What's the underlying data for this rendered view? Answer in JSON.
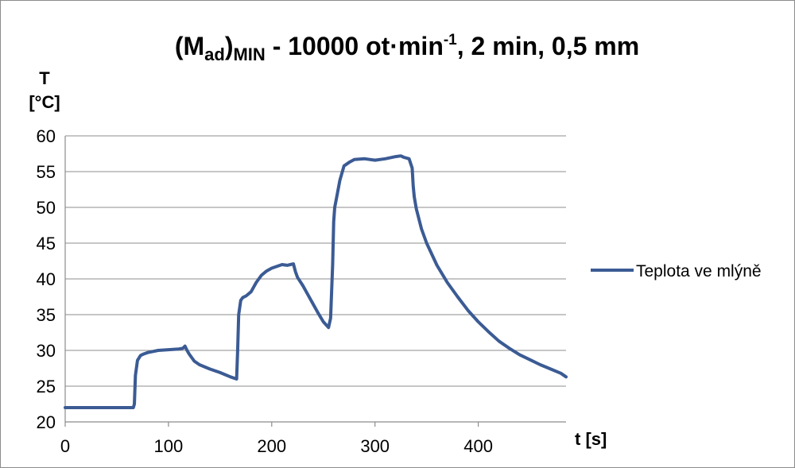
{
  "chart_data": {
    "type": "line",
    "title": {
      "prefix": "(M",
      "sub1": "ad",
      "close": ")",
      "sub2": "MIN",
      "middle": " - 10000 ot·min",
      "sup": "-1",
      "suffix": ", 2 min, 0,5 mm"
    },
    "ylabel": {
      "line1": "T",
      "line2": "[°C]"
    },
    "xlabel": "t [s]",
    "xlim": [
      0,
      485
    ],
    "ylim": [
      20,
      60
    ],
    "x_ticks": [
      "0",
      "100",
      "200",
      "300",
      "400"
    ],
    "y_ticks": [
      "20",
      "25",
      "30",
      "35",
      "40",
      "45",
      "50",
      "55",
      "60"
    ],
    "grid": "horizontal",
    "legend_position": "right",
    "series": [
      {
        "name": "Teplota ve mlýně",
        "color": "#3b5b94",
        "x": [
          0,
          20,
          40,
          60,
          66,
          67,
          68,
          70,
          73,
          76,
          80,
          90,
          100,
          110,
          114,
          116,
          118,
          120,
          125,
          130,
          140,
          150,
          160,
          166,
          167,
          168,
          170,
          172,
          175,
          180,
          185,
          190,
          195,
          200,
          210,
          215,
          218,
          221,
          223,
          225,
          230,
          235,
          240,
          245,
          250,
          255,
          257,
          259,
          260,
          261,
          263,
          266,
          270,
          275,
          280,
          290,
          300,
          310,
          320,
          325,
          328,
          333,
          336,
          337,
          338,
          340,
          345,
          350,
          360,
          370,
          380,
          390,
          400,
          410,
          420,
          430,
          440,
          450,
          460,
          470,
          480,
          485
        ],
        "y": [
          22.0,
          22.0,
          22.0,
          22.0,
          22.0,
          22.5,
          26.5,
          28.6,
          29.3,
          29.5,
          29.7,
          30.0,
          30.1,
          30.2,
          30.3,
          30.6,
          30.0,
          29.5,
          28.5,
          28.0,
          27.4,
          26.9,
          26.3,
          26.0,
          30.0,
          35.0,
          37.0,
          37.4,
          37.6,
          38.2,
          39.5,
          40.5,
          41.1,
          41.5,
          42.0,
          41.9,
          42.0,
          42.1,
          41.0,
          40.2,
          39.1,
          37.8,
          36.5,
          35.2,
          34.0,
          33.2,
          34.5,
          42.0,
          48.0,
          50.0,
          51.5,
          53.8,
          55.8,
          56.3,
          56.7,
          56.8,
          56.6,
          56.8,
          57.1,
          57.2,
          57.0,
          56.8,
          55.5,
          53.0,
          51.5,
          49.8,
          47.0,
          45.0,
          41.9,
          39.5,
          37.5,
          35.6,
          34.0,
          32.6,
          31.3,
          30.3,
          29.4,
          28.7,
          28.0,
          27.4,
          26.8,
          26.3
        ]
      }
    ]
  }
}
